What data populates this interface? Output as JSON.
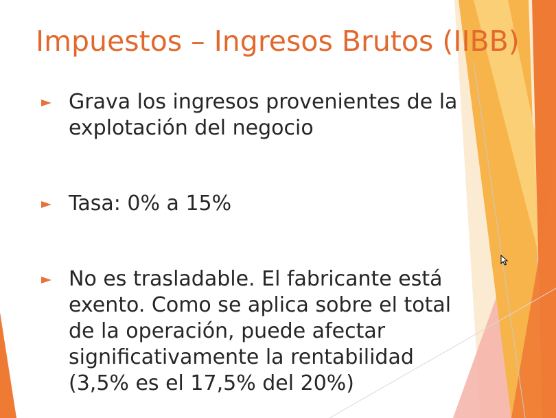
{
  "slide": {
    "title": "Impuestos – Ingresos Brutos (IIBB)",
    "bullets": [
      {
        "text": "Grava los ingresos provenientes de la explotación del negocio"
      },
      {
        "text": "Tasa: 0% a 15%"
      },
      {
        "text": "No es trasladable. El fabricante está exento. Como se aplica sobre el total de la operación, puede afectar significativamente la rentabilidad (3,5% es el 17,5% del 20%)"
      }
    ],
    "bullet_icon": "arrow-right-icon"
  },
  "colors": {
    "title": "#e2692e",
    "body_text": "#262626",
    "bullet": "#e8723a",
    "accent_orange": "#ef7a33",
    "accent_gold": "#f7b44a",
    "accent_light": "#fbd27b",
    "accent_pink": "#f5b1a8"
  }
}
